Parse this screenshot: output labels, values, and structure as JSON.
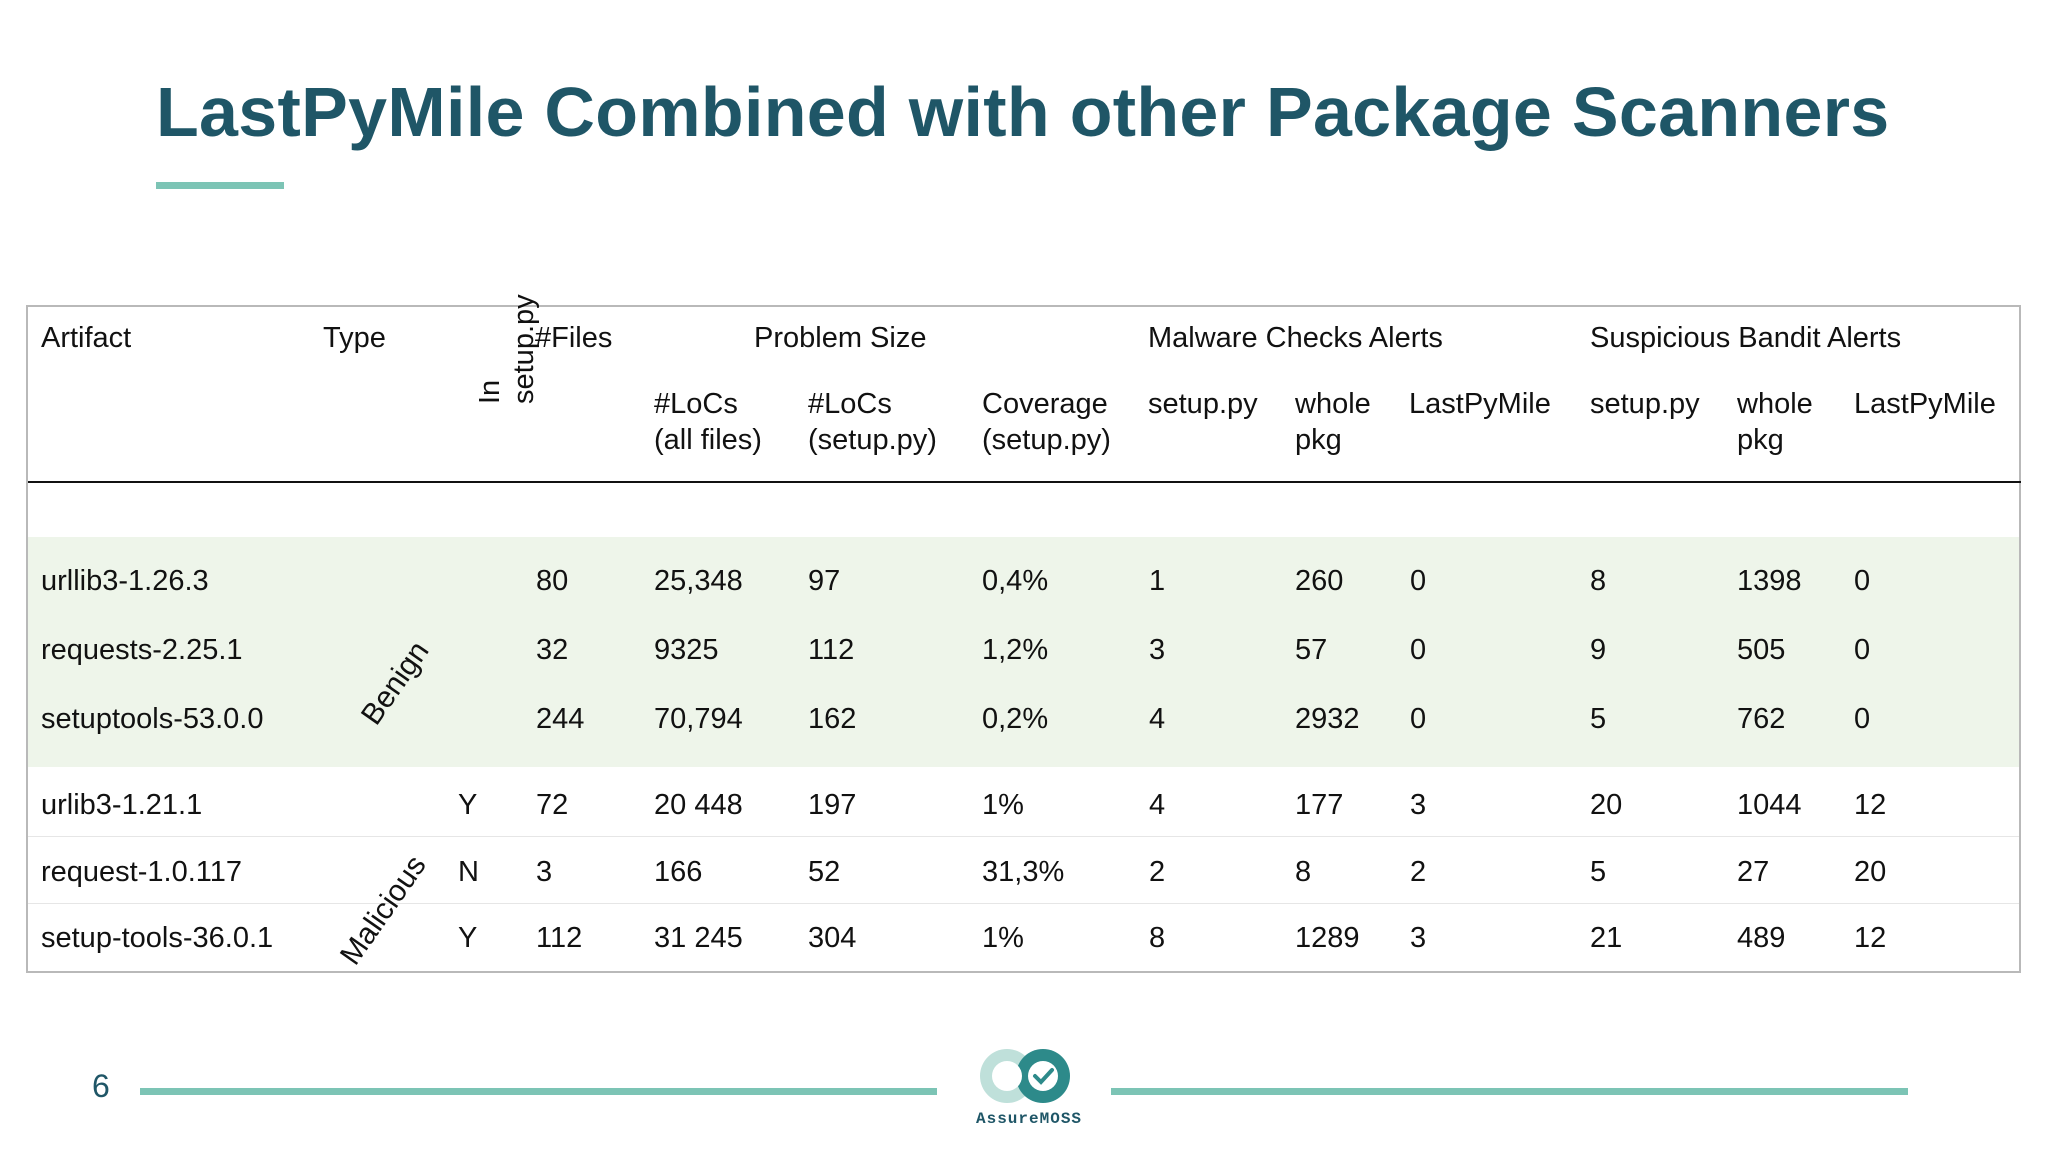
{
  "slide": {
    "title": "LastPyMile Combined with other Package Scanners",
    "page_number": "6",
    "logo_text": "AssureMOSS"
  },
  "colors": {
    "title": "#1f5667",
    "accent": "#7cc4b5",
    "benign_band": "#eef5ea"
  },
  "table": {
    "headers": {
      "artifact": "Artifact",
      "type": "Type",
      "in_setup": "In setup.py",
      "files": "#Files",
      "problem_size": "Problem Size",
      "locs_all_1": "#LoCs",
      "locs_all_2": "(all files)",
      "locs_setup_1": "#LoCs",
      "locs_setup_2": "(setup.py)",
      "coverage_1": "Coverage",
      "coverage_2": "(setup.py)",
      "malware": "Malware Checks Alerts",
      "mal_setup": "setup.py",
      "mal_whole_1": "whole",
      "mal_whole_2": "pkg",
      "mal_lpm": "LastPyMile",
      "bandit": "Suspicious Bandit Alerts",
      "ban_setup": "setup.py",
      "ban_whole_1": "whole",
      "ban_whole_2": "pkg",
      "ban_lpm": "LastPyMile"
    },
    "groups": {
      "benign": "Benign",
      "malicious": "Malicious"
    },
    "rows": [
      {
        "artifact": "urllib3-1.26.3",
        "in_setup": "",
        "files": "80",
        "locs_all": "25,348",
        "locs_setup": "97",
        "coverage": "0,4%",
        "mal_setup": "1",
        "mal_whole": "260",
        "mal_lpm": "0",
        "ban_setup": "8",
        "ban_whole": "1398",
        "ban_lpm": "0"
      },
      {
        "artifact": "requests-2.25.1",
        "in_setup": "",
        "files": "32",
        "locs_all": "9325",
        "locs_setup": "112",
        "coverage": "1,2%",
        "mal_setup": "3",
        "mal_whole": "57",
        "mal_lpm": "0",
        "ban_setup": "9",
        "ban_whole": "505",
        "ban_lpm": "0"
      },
      {
        "artifact": "setuptools-53.0.0",
        "in_setup": "",
        "files": "244",
        "locs_all": "70,794",
        "locs_setup": "162",
        "coverage": "0,2%",
        "mal_setup": "4",
        "mal_whole": "2932",
        "mal_lpm": "0",
        "ban_setup": "5",
        "ban_whole": "762",
        "ban_lpm": "0"
      },
      {
        "artifact": "urlib3-1.21.1",
        "in_setup": "Y",
        "files": "72",
        "locs_all": "20 448",
        "locs_setup": "197",
        "coverage": "1%",
        "mal_setup": "4",
        "mal_whole": "177",
        "mal_lpm": "3",
        "ban_setup": "20",
        "ban_whole": "1044",
        "ban_lpm": "12"
      },
      {
        "artifact": "request-1.0.117",
        "in_setup": "N",
        "files": "3",
        "locs_all": "166",
        "locs_setup": "52",
        "coverage": "31,3%",
        "mal_setup": "2",
        "mal_whole": "8",
        "mal_lpm": "2",
        "ban_setup": "5",
        "ban_whole": "27",
        "ban_lpm": "20"
      },
      {
        "artifact": "setup-tools-36.0.1",
        "in_setup": "Y",
        "files": "112",
        "locs_all": "31 245",
        "locs_setup": "304",
        "coverage": "1%",
        "mal_setup": "8",
        "mal_whole": "1289",
        "mal_lpm": "3",
        "ban_setup": "21",
        "ban_whole": "489",
        "ban_lpm": "12"
      }
    ]
  }
}
